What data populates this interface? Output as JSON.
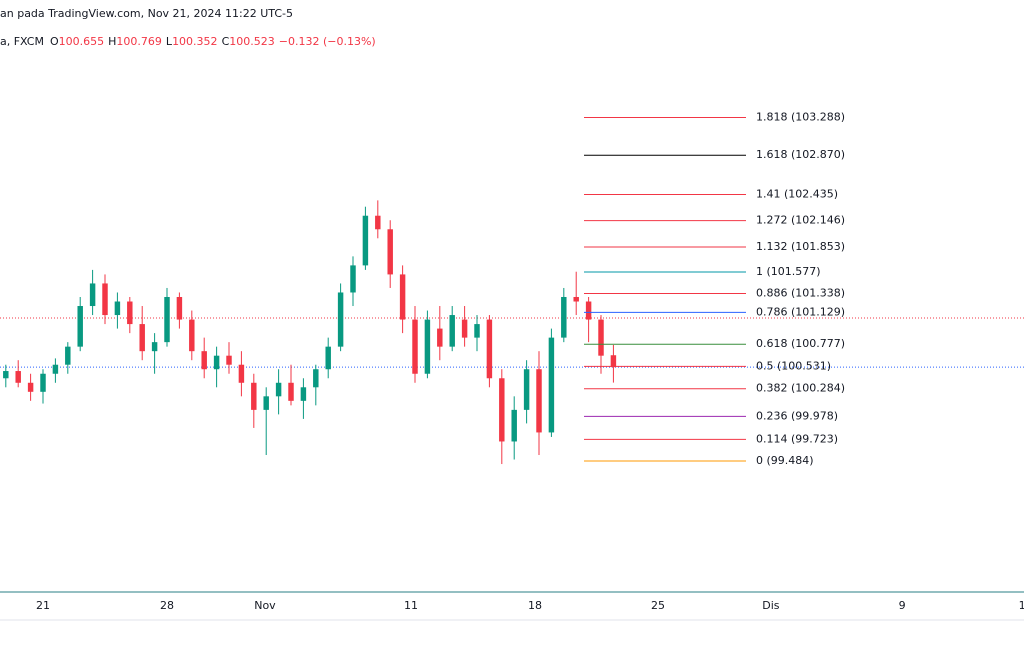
{
  "chart_data": {
    "type": "candlestick",
    "title": "an pada TradingView.com, Nov 21, 2024 11:22 UTC-5",
    "symbol": "a, FXCM",
    "ohlc_legend": [
      {
        "key": "O",
        "value": "100.655"
      },
      {
        "key": "H",
        "value": "100.769"
      },
      {
        "key": "L",
        "value": "100.352"
      },
      {
        "key": "C",
        "value": "100.523"
      }
    ],
    "change": "−0.132 (−0.13%)",
    "up_color": "#089981",
    "down_color": "#f23645",
    "xlim": [
      -1.734,
      39.556
    ],
    "ylim": [
      98.033,
      104.589
    ],
    "xticks": [
      {
        "value": 0,
        "label": "21"
      },
      {
        "value": 5,
        "label": "28"
      },
      {
        "value": 8.95,
        "label": "Nov"
      },
      {
        "value": 14.84,
        "label": "11"
      },
      {
        "value": 19.84,
        "label": "18"
      },
      {
        "value": 24.8,
        "label": "25"
      },
      {
        "value": 29.35,
        "label": "Dis"
      },
      {
        "value": 34.64,
        "label": "9"
      },
      {
        "value": 39.48,
        "label": "1"
      }
    ],
    "candles": {
      "x": [
        -1.5,
        -1,
        -0.5,
        0,
        0.5,
        1,
        1.5,
        2,
        2.5,
        3,
        3.5,
        4,
        4.5,
        5,
        5.5,
        6,
        6.5,
        7,
        7.5,
        8,
        8.5,
        9,
        9.5,
        10,
        10.5,
        11,
        11.5,
        12,
        12.5,
        13,
        13.5,
        14,
        14.5,
        15,
        15.5,
        16,
        16.5,
        17,
        17.5,
        18,
        18.5,
        19,
        19.5,
        20,
        20.5,
        21,
        21.5,
        22,
        22.5,
        23
      ],
      "open": [
        100.4,
        100.48,
        100.35,
        100.25,
        100.45,
        100.55,
        100.75,
        101.2,
        101.45,
        101.1,
        101.25,
        101.0,
        100.7,
        100.8,
        101.3,
        101.05,
        100.7,
        100.5,
        100.65,
        100.55,
        100.35,
        100.05,
        100.2,
        100.35,
        100.15,
        100.3,
        100.5,
        100.75,
        101.35,
        101.65,
        102.2,
        102.05,
        101.55,
        101.05,
        100.45,
        100.95,
        100.75,
        101.05,
        100.85,
        101.05,
        100.4,
        99.7,
        100.05,
        100.5,
        99.8,
        100.85,
        101.3,
        101.25,
        101.05,
        100.655
      ],
      "high": [
        100.55,
        100.6,
        100.45,
        100.5,
        100.62,
        100.8,
        101.3,
        101.6,
        101.55,
        101.35,
        101.3,
        101.2,
        100.9,
        101.4,
        101.35,
        101.15,
        100.85,
        100.75,
        100.8,
        100.7,
        100.45,
        100.3,
        100.5,
        100.55,
        100.4,
        100.55,
        100.85,
        101.45,
        101.75,
        102.3,
        102.37,
        102.15,
        101.65,
        101.2,
        101.15,
        101.2,
        101.2,
        101.2,
        101.1,
        101.1,
        100.5,
        100.2,
        100.6,
        100.7,
        100.95,
        101.4,
        101.58,
        101.3,
        101.1,
        100.769
      ],
      "low": [
        100.3,
        100.3,
        100.15,
        100.12,
        100.35,
        100.45,
        100.7,
        101.1,
        101.0,
        100.95,
        100.9,
        100.6,
        100.45,
        100.75,
        100.95,
        100.6,
        100.4,
        100.3,
        100.45,
        100.2,
        99.85,
        99.55,
        100.0,
        100.1,
        99.95,
        100.1,
        100.4,
        100.7,
        101.2,
        101.6,
        101.95,
        101.4,
        100.9,
        100.35,
        100.4,
        100.6,
        100.7,
        100.75,
        100.7,
        100.3,
        99.45,
        99.5,
        99.9,
        99.55,
        99.75,
        100.8,
        101.1,
        100.8,
        100.45,
        100.352
      ],
      "close": [
        100.48,
        100.35,
        100.25,
        100.45,
        100.55,
        100.75,
        101.2,
        101.45,
        101.1,
        101.25,
        101.0,
        100.7,
        100.8,
        101.3,
        101.05,
        100.7,
        100.5,
        100.65,
        100.55,
        100.35,
        100.05,
        100.2,
        100.35,
        100.15,
        100.3,
        100.5,
        100.75,
        101.35,
        101.65,
        102.2,
        102.05,
        101.55,
        101.05,
        100.45,
        101.05,
        100.75,
        101.1,
        100.85,
        101.0,
        100.4,
        99.7,
        100.05,
        100.5,
        99.8,
        100.85,
        101.3,
        101.25,
        101.05,
        100.65,
        100.523
      ]
    },
    "price_lines": [
      {
        "value": 101.068,
        "color": "#f23645"
      },
      {
        "value": 100.523,
        "color": "#2962ff"
      }
    ],
    "fib_levels": [
      {
        "label": "1.818 (103.288)",
        "value": 103.288,
        "color": "#f23645"
      },
      {
        "label": "1.618 (102.870)",
        "value": 102.87,
        "color": "#000000"
      },
      {
        "label": "1.41 (102.435)",
        "value": 102.435,
        "color": "#f23645"
      },
      {
        "label": "1.272 (102.146)",
        "value": 102.146,
        "color": "#f23645"
      },
      {
        "label": "1.132 (101.853)",
        "value": 101.853,
        "color": "#f23645"
      },
      {
        "label": "1 (101.577)",
        "value": 101.577,
        "color": "#0097a7"
      },
      {
        "label": "0.886 (101.338)",
        "value": 101.338,
        "color": "#f23645"
      },
      {
        "label": "0.786 (101.129)",
        "value": 101.129,
        "color": "#2962ff"
      },
      {
        "label": "0.618 (100.777)",
        "value": 100.777,
        "color": "#388e3c"
      },
      {
        "label": "0.5 (100.531)",
        "value": 100.531,
        "color": "#f23645"
      },
      {
        "label": "0.382 (100.284)",
        "value": 100.284,
        "color": "#f23645"
      },
      {
        "label": "0.236 (99.978)",
        "value": 99.978,
        "color": "#9c27b0"
      },
      {
        "label": "0.114 (99.723)",
        "value": 99.723,
        "color": "#f23645"
      },
      {
        "label": "0 (99.484)",
        "value": 99.484,
        "color": "#ff9800"
      }
    ]
  }
}
